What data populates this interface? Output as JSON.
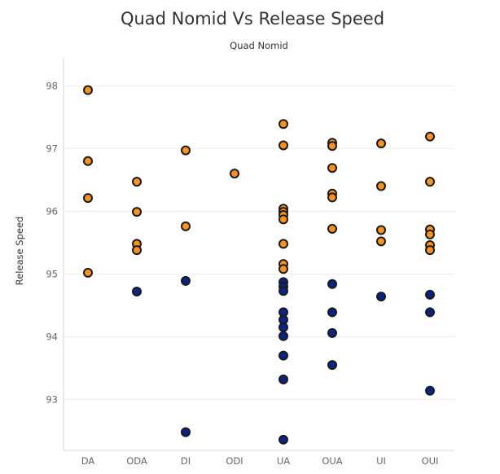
{
  "chart_data": {
    "type": "scatter",
    "title": "Quad Nomid Vs Release Speed",
    "subtitle": "Quad Nomid",
    "xlabel": "Quad Nomid",
    "ylabel": "Release Speed",
    "categories": [
      "DA",
      "ODA",
      "DI",
      "ODI",
      "UA",
      "OUA",
      "UI",
      "OUI"
    ],
    "yticks": [
      93,
      94,
      95,
      96,
      97,
      98
    ],
    "ylim": [
      92.15,
      98.25
    ],
    "grid": true,
    "colors": {
      "orange": "#f7931e",
      "navy": "#0b2287",
      "outline": "#1a1a1a"
    },
    "series": [
      {
        "name": "orange",
        "points": [
          {
            "x": "DA",
            "y": 97.93
          },
          {
            "x": "DA",
            "y": 96.8
          },
          {
            "x": "DA",
            "y": 96.21
          },
          {
            "x": "DA",
            "y": 95.02
          },
          {
            "x": "ODA",
            "y": 96.47
          },
          {
            "x": "ODA",
            "y": 95.99
          },
          {
            "x": "ODA",
            "y": 95.48
          },
          {
            "x": "ODA",
            "y": 95.38
          },
          {
            "x": "DI",
            "y": 96.97
          },
          {
            "x": "DI",
            "y": 95.76
          },
          {
            "x": "ODI",
            "y": 96.6
          },
          {
            "x": "UA",
            "y": 97.39
          },
          {
            "x": "UA",
            "y": 97.05
          },
          {
            "x": "UA",
            "y": 96.04
          },
          {
            "x": "UA",
            "y": 95.99
          },
          {
            "x": "UA",
            "y": 95.94
          },
          {
            "x": "UA",
            "y": 95.87
          },
          {
            "x": "UA",
            "y": 95.48
          },
          {
            "x": "UA",
            "y": 95.16
          },
          {
            "x": "UA",
            "y": 95.08
          },
          {
            "x": "OUA",
            "y": 97.09
          },
          {
            "x": "OUA",
            "y": 97.04
          },
          {
            "x": "OUA",
            "y": 96.69
          },
          {
            "x": "OUA",
            "y": 96.28
          },
          {
            "x": "OUA",
            "y": 96.22
          },
          {
            "x": "OUA",
            "y": 95.72
          },
          {
            "x": "UI",
            "y": 97.08
          },
          {
            "x": "UI",
            "y": 96.4
          },
          {
            "x": "UI",
            "y": 95.7
          },
          {
            "x": "UI",
            "y": 95.52
          },
          {
            "x": "OUI",
            "y": 97.19
          },
          {
            "x": "OUI",
            "y": 96.47
          },
          {
            "x": "OUI",
            "y": 95.71
          },
          {
            "x": "OUI",
            "y": 95.63
          },
          {
            "x": "OUI",
            "y": 95.46
          },
          {
            "x": "OUI",
            "y": 95.38
          }
        ]
      },
      {
        "name": "navy",
        "points": [
          {
            "x": "ODA",
            "y": 94.72
          },
          {
            "x": "DI",
            "y": 94.89
          },
          {
            "x": "DI",
            "y": 92.48
          },
          {
            "x": "UA",
            "y": 94.87
          },
          {
            "x": "UA",
            "y": 94.8
          },
          {
            "x": "UA",
            "y": 94.73
          },
          {
            "x": "UA",
            "y": 94.39
          },
          {
            "x": "UA",
            "y": 94.27
          },
          {
            "x": "UA",
            "y": 94.15
          },
          {
            "x": "UA",
            "y": 94.01
          },
          {
            "x": "UA",
            "y": 93.7
          },
          {
            "x": "UA",
            "y": 93.32
          },
          {
            "x": "UA",
            "y": 92.36
          },
          {
            "x": "OUA",
            "y": 94.84
          },
          {
            "x": "OUA",
            "y": 94.39
          },
          {
            "x": "OUA",
            "y": 94.06
          },
          {
            "x": "OUA",
            "y": 93.55
          },
          {
            "x": "UI",
            "y": 94.64
          },
          {
            "x": "OUI",
            "y": 94.67
          },
          {
            "x": "OUI",
            "y": 94.39
          },
          {
            "x": "OUI",
            "y": 93.14
          }
        ]
      }
    ]
  }
}
